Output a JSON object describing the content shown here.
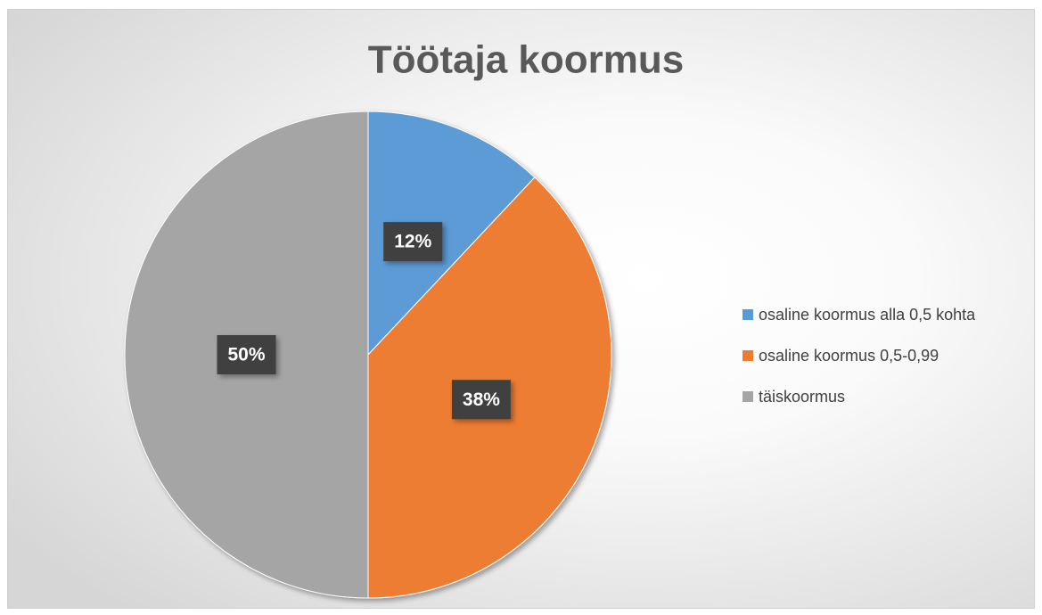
{
  "chart_data": {
    "type": "pie",
    "title": "Töötaja koormus",
    "categories": [
      "osaline koormus alla 0,5 kohta",
      "osaline koormus 0,5-0,99",
      "täiskoormus"
    ],
    "values": [
      12,
      38,
      50
    ],
    "value_labels": [
      "12%",
      "38%",
      "50%"
    ],
    "colors": [
      "#5b9bd5",
      "#ed7d31",
      "#a5a5a5"
    ],
    "legend": "right"
  }
}
